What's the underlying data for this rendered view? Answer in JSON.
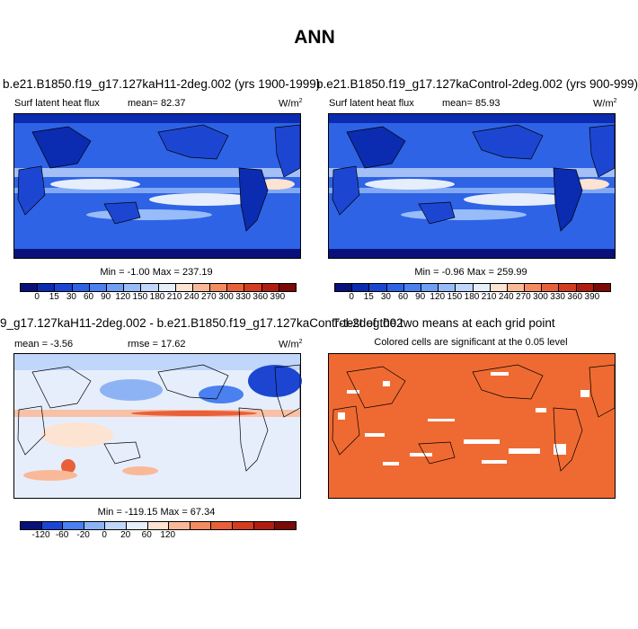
{
  "figure": {
    "title": "ANN"
  },
  "panels": [
    {
      "title": "b.e21.B1850.f19_g17.127kaH11-2deg.002 (yrs 1900-1999)",
      "left_label": "Surf latent heat flux",
      "mid_label": "mean=  82.37",
      "units": "W/m",
      "units_sup": "2",
      "minmax": "Min =  -1.00 Max = 237.19"
    },
    {
      "title": "b.e21.B1850.f19_g17.127kaControl-2deg.002 (yrs 900-999)",
      "left_label": "Surf latent heat flux",
      "mid_label": "mean=  85.93",
      "units": "W/m",
      "units_sup": "2",
      "minmax": "Min =  -0.96 Max = 259.99"
    },
    {
      "title": "9_g17.127kaH11-2deg.002 - b.e21.B1850.f19_g17.127kaControl-2deg.002",
      "left_label": "mean =  -3.56",
      "mid_label": "rmse =  17.62",
      "units": "W/m",
      "units_sup": "2",
      "minmax": "Min = -119.15 Max =  67.34"
    },
    {
      "title": "T-test of the two means at each grid point",
      "subtitle": "Colored cells are significant at the 0.05 level"
    }
  ],
  "colorbars": {
    "abs": {
      "labels": [
        "0",
        "15",
        "30",
        "60",
        "90",
        "120",
        "150",
        "180",
        "210",
        "240",
        "270",
        "300",
        "330",
        "360",
        "390"
      ],
      "colors": [
        "#08117a",
        "#0b2cb0",
        "#1c46d2",
        "#2e63e6",
        "#4a80ef",
        "#6f9ff4",
        "#97bcf7",
        "#c0d6fa",
        "#e6eefc",
        "#fde3d2",
        "#f9b998",
        "#f38a60",
        "#e8603a",
        "#d23c1f",
        "#b01d10",
        "#7c0a06"
      ]
    },
    "diff": {
      "labels": [
        "-120",
        "-60",
        "-20",
        "0",
        "20",
        "60",
        "120"
      ],
      "colors": [
        "#08117a",
        "#1c46d2",
        "#4a80ef",
        "#8eb3f5",
        "#c0d6fa",
        "#e6eefc",
        "#fde3d2",
        "#f9b998",
        "#f38a60",
        "#e8603a",
        "#d23c1f",
        "#b01d10",
        "#7c0a06"
      ]
    }
  },
  "colors": {
    "significant": "#ef6a32",
    "land_line": "#000000"
  }
}
